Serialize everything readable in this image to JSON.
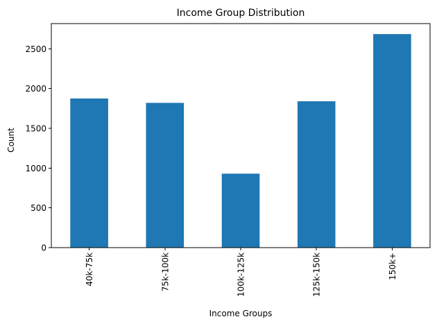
{
  "chart_data": {
    "type": "bar",
    "title": "Income Group Distribution",
    "xlabel": "Income Groups",
    "ylabel": "Count",
    "categories": [
      "40k-75k",
      "75k-100k",
      "100k-125k",
      "125k-150k",
      "150k+"
    ],
    "values": [
      1875,
      1820,
      930,
      1840,
      2685
    ],
    "ylim": [
      0,
      2817
    ],
    "yticks": [
      0,
      500,
      1000,
      1500,
      2000,
      2500
    ],
    "grid": false,
    "x_tick_rotation": "vertical",
    "colors": {
      "bar": "#1f77b4"
    }
  }
}
